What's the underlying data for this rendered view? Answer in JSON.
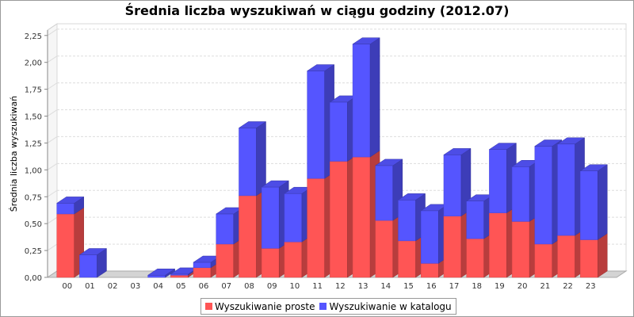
{
  "chart_data": {
    "type": "bar",
    "stacked": true,
    "style": "3d",
    "title": "Średnia liczba wyszukiwań w ciągu godziny (2012.07)",
    "xlabel": "",
    "ylabel": "Średnia liczba wyszukiwań",
    "ylim": [
      0,
      2.3
    ],
    "yticks": [
      "0,00",
      "0,25",
      "0,50",
      "0,75",
      "1,00",
      "1,25",
      "1,50",
      "1,75",
      "2,00",
      "2,25"
    ],
    "grid": true,
    "legend_position": "bottom",
    "categories": [
      "00",
      "01",
      "02",
      "03",
      "04",
      "05",
      "06",
      "07",
      "08",
      "09",
      "10",
      "11",
      "12",
      "13",
      "14",
      "15",
      "16",
      "17",
      "18",
      "19",
      "20",
      "21",
      "22",
      "23"
    ],
    "series": [
      {
        "name": "Wyszukiwanie proste",
        "color": "#ff5555",
        "values": [
          0.59,
          0.0,
          0.0,
          0.0,
          0.0,
          0.02,
          0.09,
          0.31,
          0.76,
          0.27,
          0.33,
          0.92,
          1.08,
          1.12,
          0.53,
          0.34,
          0.13,
          0.57,
          0.36,
          0.6,
          0.52,
          0.31,
          0.39,
          0.35
        ]
      },
      {
        "name": "Wyszukiwanie w katalogu",
        "color": "#5555ff",
        "values": [
          0.1,
          0.21,
          0.0,
          0.0,
          0.02,
          0.01,
          0.05,
          0.28,
          0.63,
          0.57,
          0.45,
          1.0,
          0.55,
          1.05,
          0.51,
          0.38,
          0.49,
          0.57,
          0.35,
          0.59,
          0.51,
          0.91,
          0.85,
          0.64
        ]
      }
    ]
  }
}
